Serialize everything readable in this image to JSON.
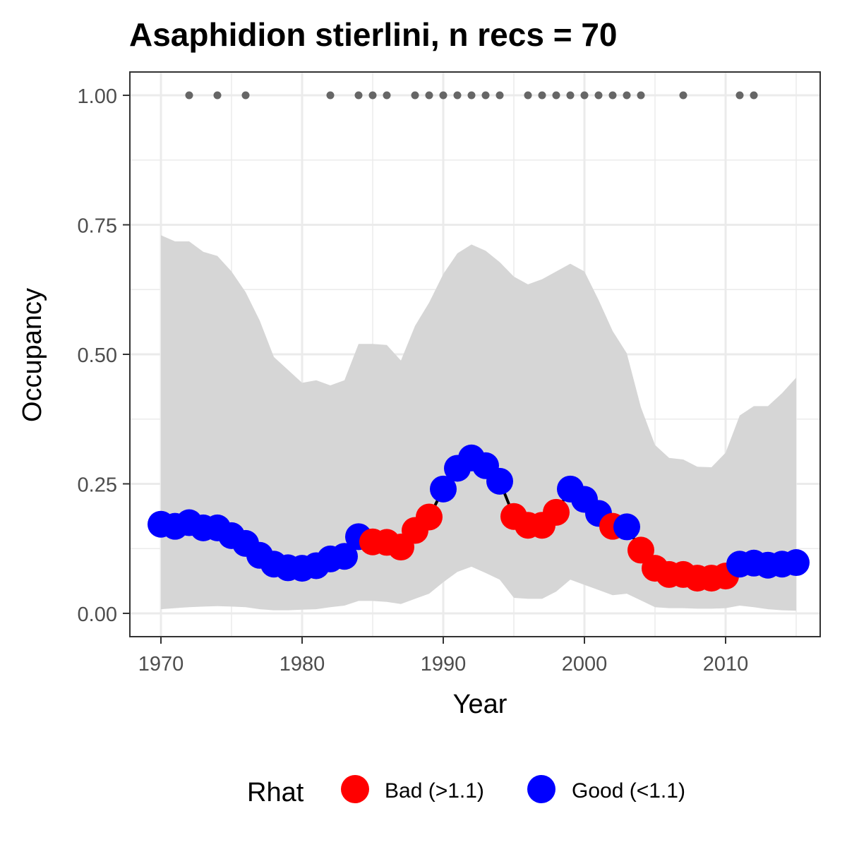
{
  "chart_data": {
    "type": "line",
    "title": "Asaphidion stierlini, n recs = 70",
    "xlabel": "Year",
    "ylabel": "Occupancy",
    "xlim": [
      1967.8,
      2016.7
    ],
    "ylim": [
      -0.045,
      1.045
    ],
    "x_ticks": [
      1970,
      1980,
      1990,
      2000,
      2010
    ],
    "x_tick_labels": [
      "1970",
      "1980",
      "1990",
      "2000",
      "2010"
    ],
    "x_minor_ticks": [
      1975,
      1985,
      1995,
      2005,
      2015
    ],
    "y_ticks": [
      0,
      0.25,
      0.5,
      0.75,
      1.0
    ],
    "y_tick_labels": [
      "0.00",
      "0.25",
      "0.50",
      "0.75",
      "1.00"
    ],
    "y_minor_ticks": [
      0.125,
      0.375,
      0.625,
      0.875
    ],
    "grid": true,
    "legend": {
      "title": "Rhat",
      "position": "bottom",
      "entries": [
        {
          "label": "Bad (>1.1)",
          "color": "#ff0000"
        },
        {
          "label": "Good (<1.1)",
          "color": "#0000ff"
        }
      ]
    },
    "colors": {
      "bad": "#ff0000",
      "good": "#0000ff",
      "ribbon": "#d6d6d6",
      "line": "#000000",
      "record_dots": "#666666",
      "grid": "#ebebeb",
      "panel_border": "#333333"
    },
    "years": [
      1970,
      1971,
      1972,
      1973,
      1974,
      1975,
      1976,
      1977,
      1978,
      1979,
      1980,
      1981,
      1982,
      1983,
      1984,
      1985,
      1986,
      1987,
      1988,
      1989,
      1990,
      1991,
      1992,
      1993,
      1994,
      1995,
      1996,
      1997,
      1998,
      1999,
      2000,
      2001,
      2002,
      2003,
      2004,
      2005,
      2006,
      2007,
      2008,
      2009,
      2010,
      2011,
      2012,
      2013,
      2014,
      2015
    ],
    "occupancy": [
      0.172,
      0.168,
      0.175,
      0.165,
      0.165,
      0.15,
      0.135,
      0.112,
      0.095,
      0.088,
      0.087,
      0.092,
      0.105,
      0.11,
      0.148,
      0.138,
      0.137,
      0.128,
      0.16,
      0.186,
      0.24,
      0.28,
      0.3,
      0.285,
      0.255,
      0.187,
      0.17,
      0.17,
      0.195,
      0.24,
      0.22,
      0.193,
      0.168,
      0.167,
      0.122,
      0.087,
      0.075,
      0.075,
      0.068,
      0.068,
      0.072,
      0.095,
      0.097,
      0.093,
      0.095,
      0.098
    ],
    "rhat": [
      "good",
      "good",
      "good",
      "good",
      "good",
      "good",
      "good",
      "good",
      "good",
      "good",
      "good",
      "good",
      "good",
      "good",
      "good",
      "bad",
      "bad",
      "bad",
      "bad",
      "bad",
      "good",
      "good",
      "good",
      "good",
      "good",
      "bad",
      "bad",
      "bad",
      "bad",
      "good",
      "good",
      "good",
      "bad",
      "good",
      "bad",
      "bad",
      "bad",
      "bad",
      "bad",
      "bad",
      "bad",
      "good",
      "good",
      "good",
      "good",
      "good"
    ],
    "upper_ci": [
      0.73,
      0.718,
      0.718,
      0.698,
      0.69,
      0.66,
      0.62,
      0.565,
      0.495,
      0.47,
      0.445,
      0.45,
      0.44,
      0.45,
      0.52,
      0.52,
      0.518,
      0.488,
      0.555,
      0.6,
      0.655,
      0.695,
      0.712,
      0.7,
      0.678,
      0.65,
      0.635,
      0.645,
      0.66,
      0.675,
      0.66,
      0.605,
      0.545,
      0.502,
      0.398,
      0.325,
      0.3,
      0.297,
      0.283,
      0.282,
      0.31,
      0.382,
      0.4,
      0.4,
      0.425,
      0.455
    ],
    "lower_ci": [
      0.008,
      0.01,
      0.012,
      0.013,
      0.014,
      0.013,
      0.012,
      0.008,
      0.006,
      0.006,
      0.007,
      0.008,
      0.012,
      0.015,
      0.024,
      0.024,
      0.022,
      0.018,
      0.028,
      0.038,
      0.06,
      0.08,
      0.09,
      0.078,
      0.065,
      0.03,
      0.028,
      0.028,
      0.042,
      0.065,
      0.055,
      0.045,
      0.035,
      0.038,
      0.025,
      0.012,
      0.01,
      0.01,
      0.009,
      0.009,
      0.01,
      0.015,
      0.012,
      0.008,
      0.006,
      0.005
    ],
    "record_years": [
      1972,
      1974,
      1976,
      1982,
      1984,
      1985,
      1986,
      1988,
      1989,
      1990,
      1991,
      1992,
      1993,
      1994,
      1996,
      1997,
      1998,
      1999,
      2000,
      2001,
      2002,
      2003,
      2004,
      2007,
      2011,
      2012
    ],
    "record_value": 1.0
  }
}
